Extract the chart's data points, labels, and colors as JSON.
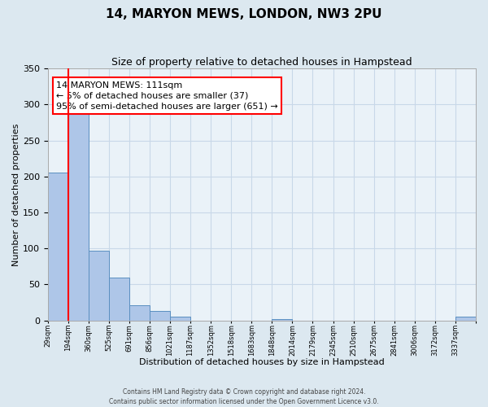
{
  "title": "14, MARYON MEWS, LONDON, NW3 2PU",
  "subtitle": "Size of property relative to detached houses in Hampstead",
  "xlabel": "Distribution of detached houses by size in Hampstead",
  "ylabel": "Number of detached properties",
  "bar_values": [
    205,
    290,
    97,
    60,
    21,
    13,
    5,
    0,
    0,
    0,
    0,
    2,
    0,
    0,
    0,
    0,
    0,
    0,
    0,
    0,
    5
  ],
  "bar_labels": [
    "29sqm",
    "194sqm",
    "360sqm",
    "525sqm",
    "691sqm",
    "856sqm",
    "1021sqm",
    "1187sqm",
    "1352sqm",
    "1518sqm",
    "1683sqm",
    "1848sqm",
    "2014sqm",
    "2179sqm",
    "2345sqm",
    "2510sqm",
    "2675sqm",
    "2841sqm",
    "3006sqm",
    "3172sqm",
    "3337sqm"
  ],
  "ylim": [
    0,
    350
  ],
  "bar_color": "#aec6e8",
  "bar_edge_color": "#5a8fc0",
  "grid_color": "#c8d8e8",
  "bg_color": "#dce8f0",
  "plot_bg_color": "#eaf2f8",
  "red_line_x": 0.5,
  "annotation_title": "14 MARYON MEWS: 111sqm",
  "annotation_line1": "← 5% of detached houses are smaller (37)",
  "annotation_line2": "95% of semi-detached houses are larger (651) →",
  "footer_line1": "Contains HM Land Registry data © Crown copyright and database right 2024.",
  "footer_line2": "Contains public sector information licensed under the Open Government Licence v3.0.",
  "yticks": [
    0,
    50,
    100,
    150,
    200,
    250,
    300,
    350
  ]
}
